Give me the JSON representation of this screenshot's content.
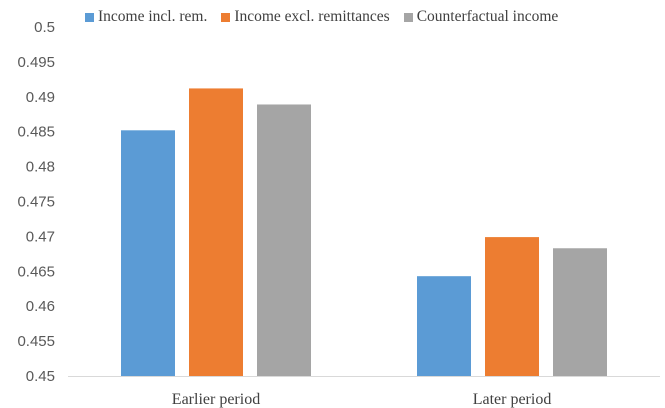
{
  "chart_data": {
    "type": "bar",
    "title": "",
    "xlabel": "",
    "ylabel": "",
    "categories": [
      "Earlier period",
      "Later period"
    ],
    "series": [
      {
        "name": "Income incl. rem.",
        "color": "#5b9bd5",
        "values": [
          0.4852,
          0.4643
        ]
      },
      {
        "name": "Income excl. remittances",
        "color": "#ed7d31",
        "values": [
          0.4912,
          0.4699
        ]
      },
      {
        "name": "Counterfactual income",
        "color": "#a5a5a5",
        "values": [
          0.4889,
          0.4683
        ]
      }
    ],
    "ylim": [
      0.45,
      0.5
    ],
    "yticks": [
      "0.45",
      "0.455",
      "0.46",
      "0.465",
      "0.47",
      "0.475",
      "0.48",
      "0.485",
      "0.49",
      "0.495",
      "0.5"
    ],
    "grid": false,
    "legend_position": "top"
  }
}
